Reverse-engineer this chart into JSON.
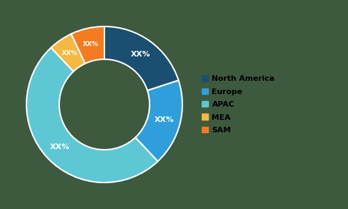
{
  "labels": [
    "North America",
    "Europe",
    "APAC",
    "MEA",
    "SAM"
  ],
  "values": [
    20,
    18,
    50,
    5,
    7
  ],
  "colors": [
    "#1b4f72",
    "#2e9fdb",
    "#5dc8d4",
    "#f5b942",
    "#f47b20"
  ],
  "text_labels": [
    "XX%",
    "XX%",
    "XX%",
    "XX%",
    "XX%"
  ],
  "background_color": "#3d5a3e",
  "wedge_edge_color": "#ffffff",
  "legend_labels": [
    "North America",
    "Europe",
    "APAC",
    "MEA",
    "SAM"
  ],
  "legend_colors": [
    "#1b4f72",
    "#2e9fdb",
    "#5dc8d4",
    "#f5b942",
    "#f47b20"
  ],
  "startangle": 90,
  "donut_width": 0.42,
  "label_fontsize": 8,
  "legend_fontsize": 8
}
